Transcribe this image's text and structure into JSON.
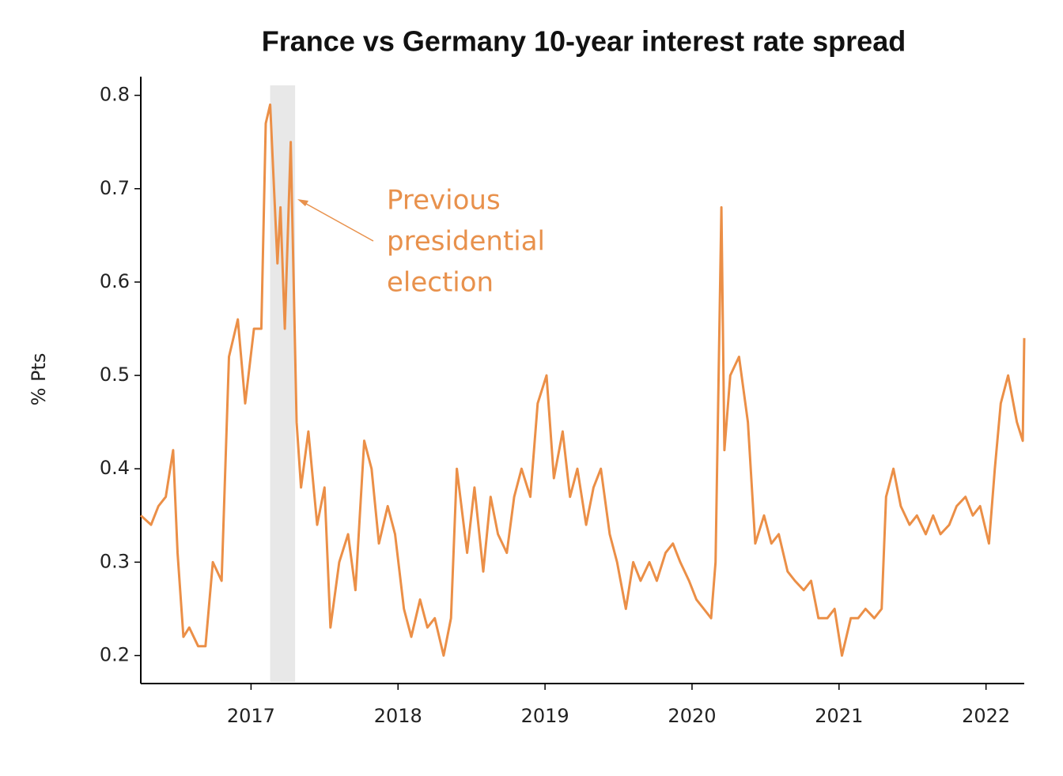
{
  "chart_data": {
    "type": "line",
    "title": "France vs Germany 10-year interest rate spread",
    "ylabel": "% Pts",
    "annotation": [
      "Previous",
      "presidential",
      "election"
    ],
    "highlight": [
      2017.13,
      2017.3
    ],
    "xlim": [
      2016.25,
      2022.26
    ],
    "xticks": [
      2017,
      2018,
      2019,
      2020,
      2021,
      2022
    ],
    "ylim": [
      0.17,
      0.82
    ],
    "yticks": [
      0.2,
      0.3,
      0.4,
      0.5,
      0.6,
      0.7,
      0.8
    ],
    "series": [
      {
        "color": "#eb8f47",
        "x": [
          2016.25,
          2016.32,
          2016.37,
          2016.42,
          2016.47,
          2016.5,
          2016.54,
          2016.58,
          2016.64,
          2016.69,
          2016.74,
          2016.8,
          2016.85,
          2016.91,
          2016.96,
          2017.02,
          2017.07,
          2017.1,
          2017.13,
          2017.18,
          2017.2,
          2017.23,
          2017.27,
          2017.31,
          2017.34,
          2017.39,
          2017.45,
          2017.5,
          2017.54,
          2017.6,
          2017.66,
          2017.71,
          2017.77,
          2017.82,
          2017.87,
          2017.93,
          2017.98,
          2018.04,
          2018.09,
          2018.15,
          2018.2,
          2018.25,
          2018.31,
          2018.36,
          2018.4,
          2018.47,
          2018.52,
          2018.58,
          2018.63,
          2018.68,
          2018.74,
          2018.79,
          2018.84,
          2018.9,
          2018.95,
          2019.01,
          2019.06,
          2019.12,
          2019.17,
          2019.22,
          2019.28,
          2019.33,
          2019.38,
          2019.44,
          2019.49,
          2019.55,
          2019.6,
          2019.65,
          2019.71,
          2019.76,
          2019.82,
          2019.87,
          2019.92,
          2019.98,
          2020.03,
          2020.08,
          2020.13,
          2020.16,
          2020.2,
          2020.22,
          2020.26,
          2020.32,
          2020.38,
          2020.43,
          2020.49,
          2020.54,
          2020.59,
          2020.65,
          2020.7,
          2020.76,
          2020.81,
          2020.86,
          2020.92,
          2020.97,
          2021.02,
          2021.08,
          2021.13,
          2021.18,
          2021.24,
          2021.29,
          2021.32,
          2021.37,
          2021.42,
          2021.48,
          2021.53,
          2021.59,
          2021.64,
          2021.69,
          2021.75,
          2021.8,
          2021.86,
          2021.91,
          2021.96,
          2022.02,
          2022.06,
          2022.1,
          2022.15,
          2022.21,
          2022.25,
          2022.26
        ],
        "values": [
          0.35,
          0.34,
          0.36,
          0.37,
          0.42,
          0.31,
          0.22,
          0.23,
          0.21,
          0.21,
          0.3,
          0.28,
          0.52,
          0.56,
          0.47,
          0.55,
          0.55,
          0.77,
          0.79,
          0.62,
          0.68,
          0.55,
          0.75,
          0.45,
          0.38,
          0.44,
          0.34,
          0.38,
          0.23,
          0.3,
          0.33,
          0.27,
          0.43,
          0.4,
          0.32,
          0.36,
          0.33,
          0.25,
          0.22,
          0.26,
          0.23,
          0.24,
          0.2,
          0.24,
          0.4,
          0.31,
          0.38,
          0.29,
          0.37,
          0.33,
          0.31,
          0.37,
          0.4,
          0.37,
          0.47,
          0.5,
          0.39,
          0.44,
          0.37,
          0.4,
          0.34,
          0.38,
          0.4,
          0.33,
          0.3,
          0.25,
          0.3,
          0.28,
          0.3,
          0.28,
          0.31,
          0.32,
          0.3,
          0.28,
          0.26,
          0.25,
          0.24,
          0.3,
          0.68,
          0.42,
          0.5,
          0.52,
          0.45,
          0.32,
          0.35,
          0.32,
          0.33,
          0.29,
          0.28,
          0.27,
          0.28,
          0.24,
          0.24,
          0.25,
          0.2,
          0.24,
          0.24,
          0.25,
          0.24,
          0.25,
          0.37,
          0.4,
          0.36,
          0.34,
          0.35,
          0.33,
          0.35,
          0.33,
          0.34,
          0.36,
          0.37,
          0.35,
          0.36,
          0.32,
          0.4,
          0.47,
          0.5,
          0.45,
          0.43,
          0.54
        ]
      }
    ]
  }
}
